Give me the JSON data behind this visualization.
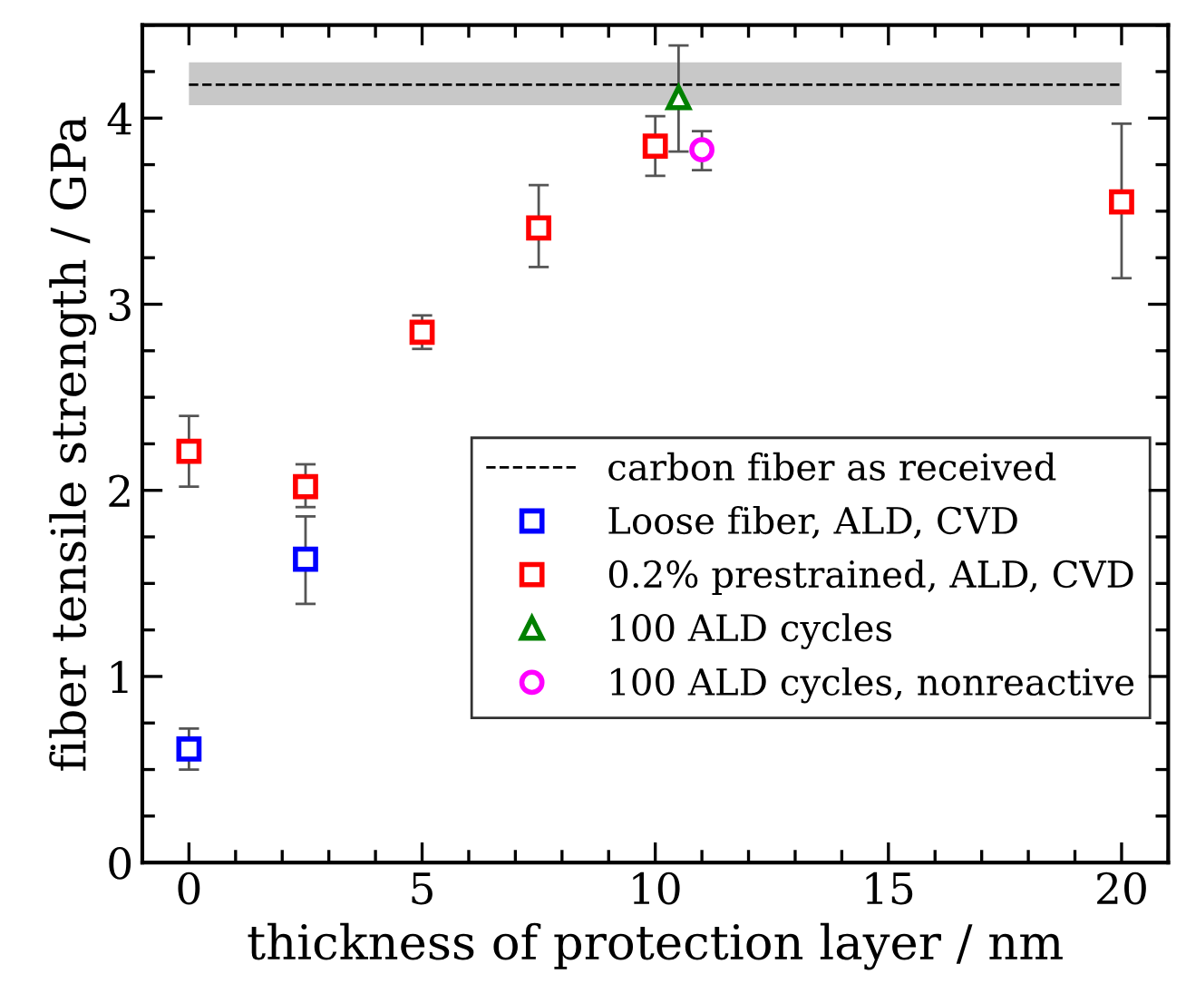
{
  "chart_data": {
    "type": "scatter",
    "xlabel": "thickness of protection layer / nm",
    "ylabel": "fiber tensile strength / GPa",
    "xlim": [
      -1,
      21
    ],
    "ylim": [
      0,
      4.5
    ],
    "xticks": [
      0,
      5,
      10,
      15,
      20
    ],
    "yticks": [
      0,
      1,
      2,
      3,
      4
    ],
    "grid": false,
    "legend": "right",
    "series": [
      {
        "name": "carbon fiber as received",
        "type": "line",
        "color": "#000000",
        "line_style": "dashed",
        "marker": "none",
        "x": [
          0,
          20
        ],
        "values": [
          4.18,
          4.18
        ],
        "lower": [
          4.07,
          4.07
        ],
        "upper": [
          4.3,
          4.3
        ]
      },
      {
        "name": "Loose fiber, ALD, CVD",
        "color": "#0000ff",
        "marker": "square",
        "x": [
          0,
          2.5
        ],
        "values": [
          0.61,
          1.63
        ],
        "errors": [
          [
            0.5,
            0.72
          ],
          [
            1.39,
            1.86
          ]
        ]
      },
      {
        "name": "0.2% prestrained, ALD, CVD",
        "color": "#ff0000",
        "marker": "square",
        "x": [
          0,
          2.5,
          5,
          7.5,
          10,
          20
        ],
        "values": [
          2.21,
          2.02,
          2.85,
          3.41,
          3.85,
          3.55
        ],
        "errors": [
          [
            2.02,
            2.4
          ],
          [
            1.91,
            2.14
          ],
          [
            2.76,
            2.94
          ],
          [
            3.2,
            3.64
          ],
          [
            3.69,
            4.01
          ],
          [
            3.14,
            3.97
          ]
        ]
      },
      {
        "name": "100 ALD cycles",
        "color": "#008000",
        "marker": "triangle",
        "x": [
          10.5
        ],
        "values": [
          4.11
        ],
        "errors": [
          [
            3.82,
            4.39
          ]
        ]
      },
      {
        "name": "100 ALD cycles, nonreactive",
        "color": "#ff00ff",
        "marker": "circle",
        "x": [
          11
        ],
        "values": [
          3.83
        ],
        "errors": [
          [
            3.72,
            3.93
          ]
        ]
      }
    ]
  }
}
